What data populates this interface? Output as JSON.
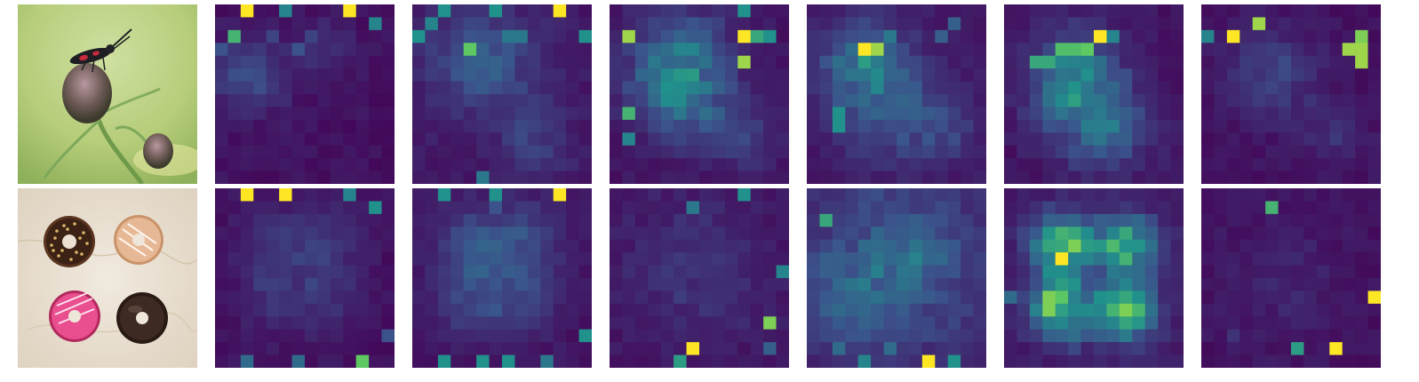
{
  "figure": {
    "grid_size": 14,
    "colormap": [
      "#440154",
      "#3b528b",
      "#21918c",
      "#5ec962",
      "#fde725"
    ],
    "rows": [
      {
        "photo": {
          "subject": "moth-on-thistle-photo"
        },
        "heatmaps": [
          {
            "base": 0.02,
            "blobs": [
              [
                2,
                5,
                2.2,
                0.18
              ],
              [
                8,
                3,
                1.5,
                0.1
              ]
            ],
            "hot": [
              [
                2,
                0,
                1.0
              ],
              [
                5,
                0,
                0.45
              ],
              [
                10,
                0,
                1.0
              ],
              [
                12,
                1,
                0.45
              ],
              [
                1,
                2,
                0.65
              ],
              [
                6,
                3,
                0.25
              ],
              [
                0,
                3,
                0.25
              ],
              [
                4,
                2,
                0.2
              ],
              [
                7,
                2,
                0.2
              ]
            ]
          },
          {
            "base": 0.04,
            "blobs": [
              [
                5,
                4,
                3.0,
                0.22
              ],
              [
                9,
                10,
                2.0,
                0.12
              ]
            ],
            "hot": [
              [
                2,
                0,
                0.5
              ],
              [
                6,
                0,
                0.5
              ],
              [
                11,
                0,
                1.0
              ],
              [
                0,
                2,
                0.5
              ],
              [
                13,
                2,
                0.5
              ],
              [
                4,
                3,
                0.75
              ],
              [
                1,
                1,
                0.45
              ],
              [
                7,
                2,
                0.4
              ],
              [
                8,
                2,
                0.4
              ],
              [
                5,
                13,
                0.4
              ]
            ]
          },
          {
            "base": 0.03,
            "blobs": [
              [
                5,
                4,
                2.8,
                0.3
              ],
              [
                5,
                7,
                2.2,
                0.22
              ],
              [
                10,
                10,
                2.0,
                0.12
              ]
            ],
            "hot": [
              [
                1,
                2,
                0.85
              ],
              [
                5,
                3,
                0.45
              ],
              [
                6,
                3,
                0.45
              ],
              [
                10,
                2,
                1.0
              ],
              [
                11,
                2,
                0.6
              ],
              [
                12,
                2,
                0.5
              ],
              [
                10,
                4,
                0.85
              ],
              [
                1,
                8,
                0.65
              ],
              [
                1,
                10,
                0.45
              ],
              [
                10,
                0,
                0.5
              ]
            ]
          },
          {
            "base": 0.04,
            "blobs": [
              [
                4,
                4,
                2.5,
                0.28
              ],
              [
                6,
                8,
                3.0,
                0.15
              ],
              [
                10,
                9,
                2.0,
                0.12
              ]
            ],
            "hot": [
              [
                4,
                3,
                1.0
              ],
              [
                5,
                3,
                0.85
              ],
              [
                4,
                4,
                0.55
              ],
              [
                2,
                9,
                0.5
              ],
              [
                2,
                8,
                0.5
              ],
              [
                6,
                2,
                0.4
              ],
              [
                10,
                2,
                0.3
              ],
              [
                11,
                1,
                0.3
              ]
            ]
          },
          {
            "base": 0.03,
            "blobs": [
              [
                5,
                5,
                2.5,
                0.28
              ],
              [
                6,
                8,
                2.5,
                0.22
              ],
              [
                8,
                10,
                2.2,
                0.12
              ]
            ],
            "hot": [
              [
                7,
                2,
                1.0
              ],
              [
                8,
                2,
                0.45
              ],
              [
                4,
                3,
                0.7
              ],
              [
                5,
                3,
                0.7
              ],
              [
                6,
                3,
                0.75
              ],
              [
                2,
                4,
                0.6
              ],
              [
                3,
                4,
                0.6
              ],
              [
                4,
                4,
                0.45
              ],
              [
                5,
                6,
                0.45
              ],
              [
                5,
                7,
                0.45
              ]
            ]
          },
          {
            "base": 0.02,
            "blobs": [
              [
                5,
                5,
                2.5,
                0.16
              ],
              [
                10,
                10,
                1.8,
                0.08
              ]
            ],
            "hot": [
              [
                4,
                1,
                0.85
              ],
              [
                2,
                2,
                1.0
              ],
              [
                0,
                2,
                0.45
              ],
              [
                11,
                3,
                0.85
              ],
              [
                12,
                2,
                0.8
              ],
              [
                12,
                3,
                0.85
              ],
              [
                12,
                4,
                0.85
              ]
            ]
          }
        ]
      },
      {
        "photo": {
          "subject": "four-donuts-photo"
        },
        "heatmaps": [
          {
            "base": 0.02,
            "blobs": [
              [
                4,
                3.5,
                2.0,
                0.1
              ],
              [
                8,
                3.5,
                2.0,
                0.1
              ],
              [
                4,
                8,
                2.0,
                0.1
              ],
              [
                8,
                8,
                2.0,
                0.1
              ]
            ],
            "hot": [
              [
                2,
                0,
                1.0
              ],
              [
                5,
                0,
                1.0
              ],
              [
                10,
                0,
                0.45
              ],
              [
                12,
                1,
                0.5
              ],
              [
                11,
                13,
                0.75
              ],
              [
                2,
                13,
                0.35
              ],
              [
                6,
                13,
                0.35
              ],
              [
                13,
                11,
                0.25
              ]
            ]
          },
          {
            "base": 0.03,
            "blobs": [
              [
                4,
                3.5,
                2.0,
                0.16
              ],
              [
                8,
                3.5,
                2.0,
                0.16
              ],
              [
                4,
                8,
                2.0,
                0.16
              ],
              [
                8,
                8,
                2.0,
                0.16
              ]
            ],
            "hot": [
              [
                2,
                0,
                0.5
              ],
              [
                6,
                0,
                0.5
              ],
              [
                11,
                0,
                1.0
              ],
              [
                13,
                11,
                0.5
              ],
              [
                2,
                13,
                0.5
              ],
              [
                5,
                13,
                0.5
              ],
              [
                7,
                13,
                0.5
              ],
              [
                10,
                13,
                0.4
              ],
              [
                6,
                1,
                0.25
              ]
            ]
          },
          {
            "base": 0.03,
            "blobs": [
              [
                6,
                6,
                4.0,
                0.1
              ]
            ],
            "hot": [
              [
                10,
                0,
                0.5
              ],
              [
                6,
                1,
                0.4
              ],
              [
                13,
                6,
                0.45
              ],
              [
                12,
                10,
                0.8
              ],
              [
                6,
                12,
                1.0
              ],
              [
                5,
                13,
                0.55
              ],
              [
                12,
                12,
                0.3
              ]
            ]
          },
          {
            "base": 0.06,
            "blobs": [
              [
                6,
                6,
                5.0,
                0.2
              ],
              [
                3,
                8,
                2.0,
                0.12
              ],
              [
                8,
                4,
                2.0,
                0.12
              ]
            ],
            "hot": [
              [
                1,
                2,
                0.6
              ],
              [
                9,
                13,
                1.0
              ],
              [
                11,
                13,
                0.5
              ],
              [
                4,
                13,
                0.45
              ],
              [
                2,
                12,
                0.35
              ],
              [
                6,
                12,
                0.35
              ],
              [
                1,
                5,
                0.3
              ]
            ]
          },
          {
            "base": 0.05,
            "blobs": [
              [
                4,
                4,
                1.6,
                0.62
              ],
              [
                9,
                4,
                1.6,
                0.58
              ],
              [
                4,
                9,
                1.6,
                0.62
              ],
              [
                9,
                9,
                1.6,
                0.58
              ]
            ],
            "hot": [
              [
                4,
                5,
                1.0
              ],
              [
                5,
                4,
                0.8
              ],
              [
                3,
                9,
                0.8
              ],
              [
                3,
                8,
                0.8
              ],
              [
                9,
                9,
                0.8
              ],
              [
                9,
                3,
                0.6
              ],
              [
                7,
                8,
                0.5
              ],
              [
                0,
                8,
                0.35
              ],
              [
                7,
                2,
                0.3
              ]
            ]
          },
          {
            "base": 0.02,
            "blobs": [
              [
                6,
                7,
                3.5,
                0.06
              ]
            ],
            "hot": [
              [
                5,
                1,
                0.65
              ],
              [
                13,
                8,
                1.0
              ],
              [
                7,
                12,
                0.55
              ],
              [
                10,
                12,
                1.0
              ],
              [
                2,
                11,
                0.15
              ]
            ]
          }
        ]
      }
    ]
  }
}
